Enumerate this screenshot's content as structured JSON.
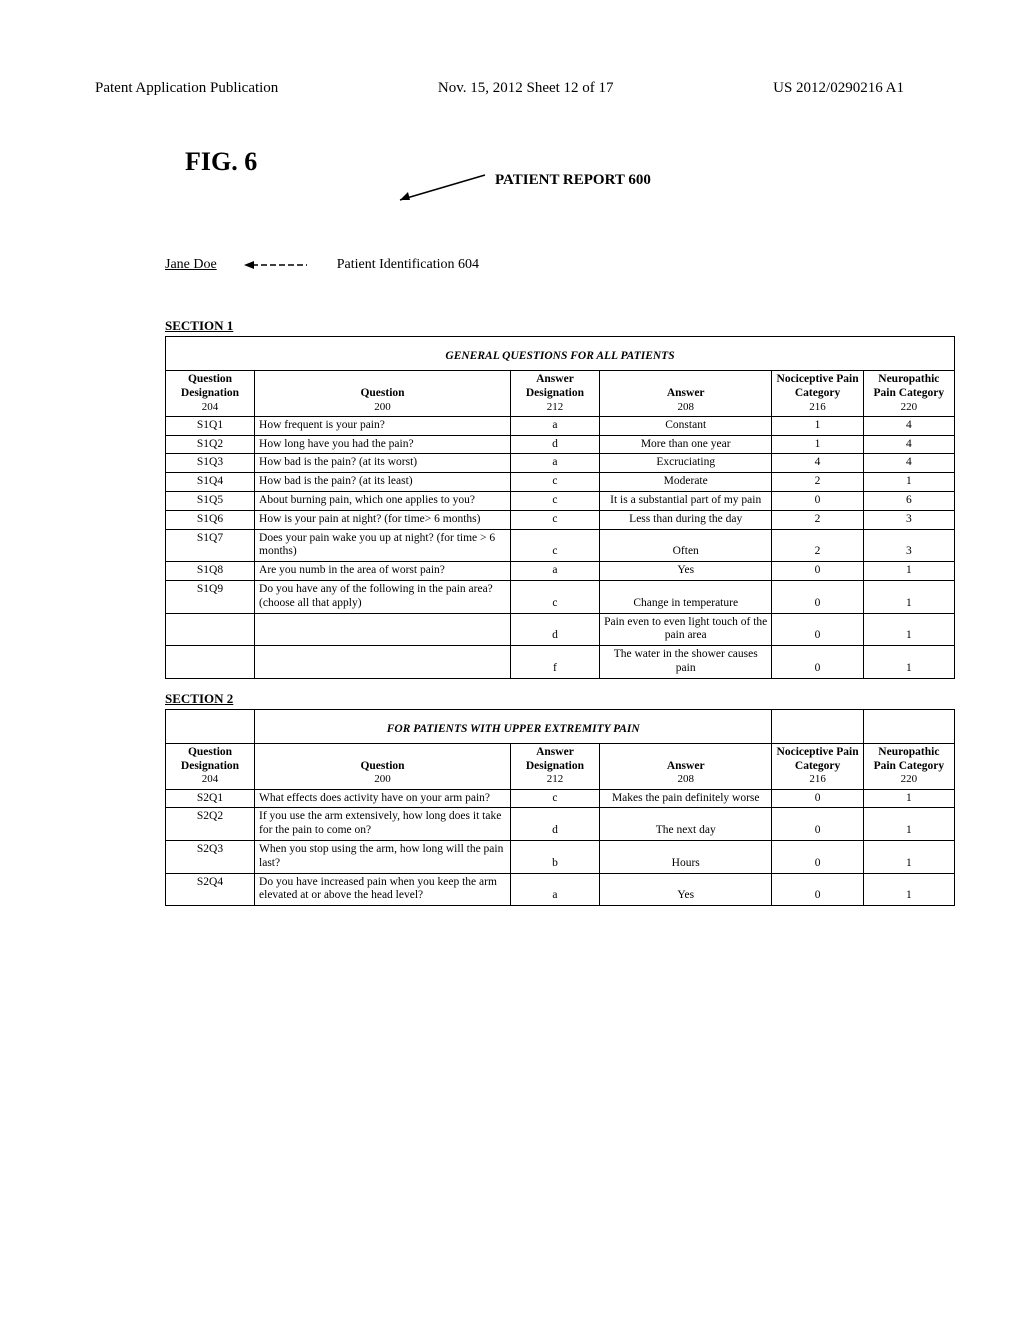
{
  "header": {
    "left": "Patent Application Publication",
    "center": "Nov. 15, 2012  Sheet 12 of 17",
    "right": "US 2012/0290216 A1"
  },
  "figure_label": "FIG. 6",
  "report_title": "PATIENT REPORT 600",
  "patient": {
    "name": "Jane Doe",
    "id_label": "Patient Identification 604"
  },
  "columns": {
    "qd": "Question Designation",
    "qd_num": "204",
    "q": "Question",
    "q_num": "200",
    "ad": "Answer Designation",
    "ad_num": "212",
    "a": "Answer",
    "a_num": "208",
    "n1": "Nociceptive Pain Category",
    "n1_num": "216",
    "n2": "Neuropathic Pain Category",
    "n2_num": "220"
  },
  "section1": {
    "label": "SECTION 1",
    "title": "GENERAL QUESTIONS FOR ALL PATIENTS",
    "rows": [
      {
        "qd": "S1Q1",
        "q": "How frequent is your pain?",
        "ad": "a",
        "a": "Constant",
        "n1": "1",
        "n2": "4"
      },
      {
        "qd": "S1Q2",
        "q": "How long have you had the pain?",
        "ad": "d",
        "a": "More than one year",
        "n1": "1",
        "n2": "4"
      },
      {
        "qd": "S1Q3",
        "q": "How bad is the pain? (at its worst)",
        "ad": "a",
        "a": "Excruciating",
        "n1": "4",
        "n2": "4"
      },
      {
        "qd": "S1Q4",
        "q": "How bad is the pain? (at its least)",
        "ad": "c",
        "a": "Moderate",
        "n1": "2",
        "n2": "1"
      },
      {
        "qd": "S1Q5",
        "q": "About burning pain, which one applies to you?",
        "ad": "c",
        "a": "It is a substantial part of my pain",
        "n1": "0",
        "n2": "6"
      },
      {
        "qd": "S1Q6",
        "q": "How is your pain at night? (for time> 6 months)",
        "ad": "c",
        "a": "Less than during the day",
        "n1": "2",
        "n2": "3"
      },
      {
        "qd": "S1Q7",
        "q": "Does your pain wake you up at night? (for time > 6 months)",
        "ad": "c",
        "a": "Often",
        "n1": "2",
        "n2": "3"
      },
      {
        "qd": "S1Q8",
        "q": "Are you numb in the area of worst pain?",
        "ad": "a",
        "a": "Yes",
        "n1": "0",
        "n2": "1"
      },
      {
        "qd": "S1Q9",
        "q": "Do you have any of the following in the pain area? (choose all that apply)",
        "ad": "c",
        "a": "Change in temperature",
        "n1": "0",
        "n2": "1"
      },
      {
        "qd": "",
        "q": "",
        "ad": "d",
        "a": "Pain even to even light touch of the pain area",
        "n1": "0",
        "n2": "1"
      },
      {
        "qd": "",
        "q": "",
        "ad": "f",
        "a": "The water in the shower causes pain",
        "n1": "0",
        "n2": "1"
      }
    ]
  },
  "section2": {
    "label": "SECTION 2",
    "title": "FOR PATIENTS WITH UPPER EXTREMITY PAIN",
    "rows": [
      {
        "qd": "S2Q1",
        "q": "What effects does activity have on your arm pain?",
        "ad": "c",
        "a": "Makes the pain definitely worse",
        "n1": "0",
        "n2": "1"
      },
      {
        "qd": "S2Q2",
        "q": "If you use the arm extensively, how long does it take for the pain to come on?",
        "ad": "d",
        "a": "The next day",
        "n1": "0",
        "n2": "1"
      },
      {
        "qd": "S2Q3",
        "q": "When you stop using the arm, how long will the pain last?",
        "ad": "b",
        "a": "Hours",
        "n1": "0",
        "n2": "1"
      },
      {
        "qd": "S2Q4",
        "q": "Do you have increased pain when you keep the arm elevated at or above the head level?",
        "ad": "a",
        "a": "Yes",
        "n1": "0",
        "n2": "1"
      }
    ]
  },
  "colors": {
    "border": "#000000",
    "bg": "#ffffff"
  }
}
